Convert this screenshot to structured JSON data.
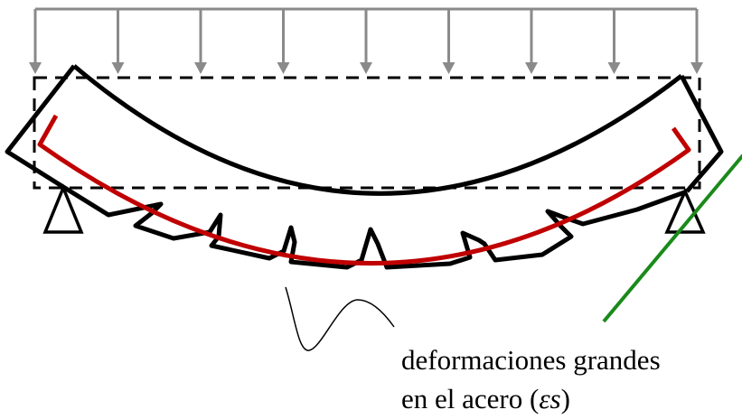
{
  "caption": {
    "line1": "deformaciones grandes",
    "line2_prefix": "en el acero (",
    "line2_symbol": "εs",
    "line2_suffix": ")"
  },
  "colors": {
    "beam": "#000000",
    "load_arrows": "#8a8a8a",
    "reinforcement": "#c00000",
    "strain_line": "#1a8a1a",
    "reference_box": "#000000"
  }
}
